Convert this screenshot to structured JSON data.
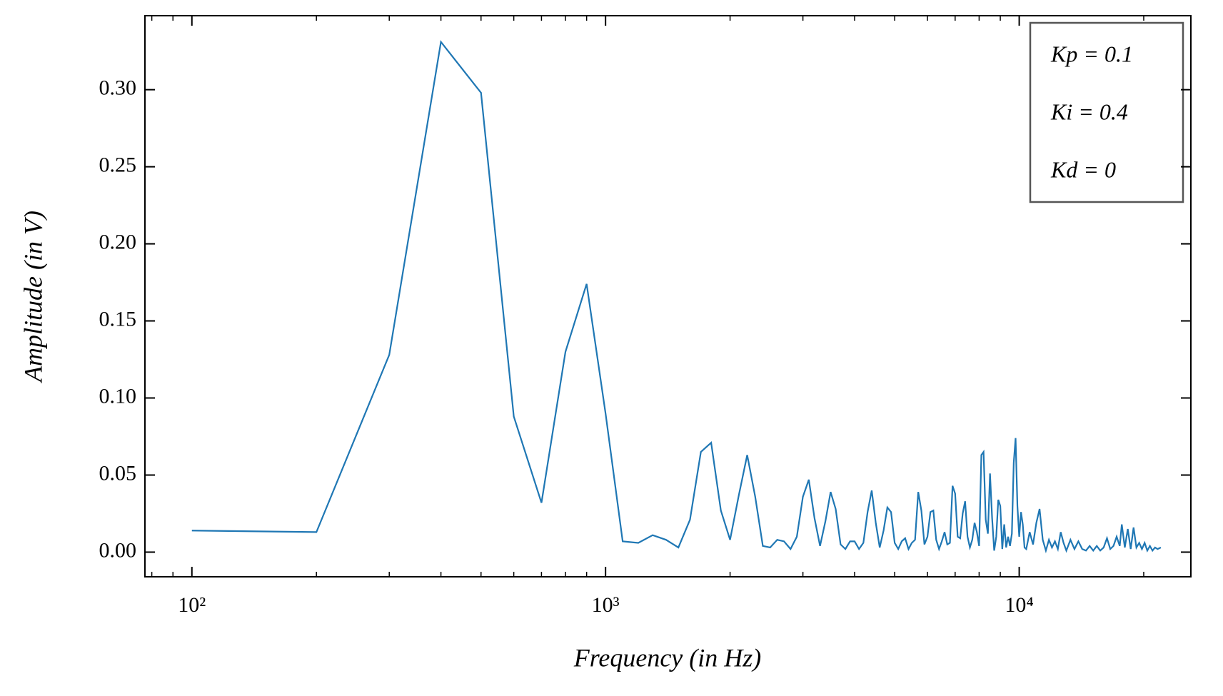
{
  "chart_data": {
    "type": "line",
    "xlabel": "Frequency (in Hz)",
    "ylabel": "Amplitude (in V)",
    "legend_lines": [
      "Kp = 0.1",
      "Ki = 0.4",
      "Kd = 0"
    ],
    "color": "#1f77b4",
    "xscale": "log",
    "xlim": [
      77,
      26000
    ],
    "ylim": [
      -0.016,
      0.348
    ],
    "xticks": [
      {
        "value": 100,
        "label": "10²"
      },
      {
        "value": 1000,
        "label": "10³"
      },
      {
        "value": 10000,
        "label": "10⁴"
      }
    ],
    "xminorticks": [
      80,
      90,
      200,
      300,
      400,
      500,
      600,
      700,
      800,
      900,
      2000,
      3000,
      4000,
      5000,
      6000,
      7000,
      8000,
      9000,
      20000
    ],
    "yticks": [
      {
        "value": 0,
        "label": "0.00"
      },
      {
        "value": 0.05,
        "label": "0.05"
      },
      {
        "value": 0.1,
        "label": "0.10"
      },
      {
        "value": 0.15,
        "label": "0.15"
      },
      {
        "value": 0.2,
        "label": "0.20"
      },
      {
        "value": 0.25,
        "label": "0.25"
      },
      {
        "value": 0.3,
        "label": "0.30"
      }
    ],
    "x": [
      100,
      200,
      300,
      400,
      500,
      600,
      700,
      800,
      900,
      1000,
      1100,
      1200,
      1300,
      1400,
      1500,
      1600,
      1700,
      1800,
      1900,
      2000,
      2100,
      2200,
      2300,
      2400,
      2500,
      2600,
      2700,
      2800,
      2900,
      3000,
      3100,
      3200,
      3300,
      3400,
      3500,
      3600,
      3700,
      3800,
      3900,
      4000,
      4100,
      4200,
      4300,
      4400,
      4500,
      4600,
      4700,
      4800,
      4900,
      5000,
      5100,
      5200,
      5300,
      5400,
      5500,
      5600,
      5700,
      5800,
      5900,
      6000,
      6100,
      6200,
      6300,
      6400,
      6500,
      6600,
      6700,
      6800,
      6900,
      7000,
      7100,
      7200,
      7300,
      7400,
      7500,
      7600,
      7700,
      7800,
      7900,
      8000,
      8100,
      8200,
      8300,
      8400,
      8500,
      8600,
      8700,
      8800,
      8900,
      9000,
      9100,
      9200,
      9300,
      9400,
      9500,
      9600,
      9700,
      9800,
      9900,
      10000,
      10100,
      10200,
      10300,
      10400,
      10600,
      10800,
      11000,
      11200,
      11400,
      11600,
      11800,
      12000,
      12200,
      12400,
      12600,
      12800,
      13000,
      13300,
      13600,
      13900,
      14200,
      14500,
      14800,
      15100,
      15400,
      15700,
      16000,
      16300,
      16600,
      16900,
      17200,
      17500,
      17700,
      18000,
      18300,
      18600,
      18900,
      19200,
      19500,
      19800,
      20100,
      20400,
      20700,
      21000,
      21300,
      21600,
      22000
    ],
    "values": [
      0.014,
      0.013,
      0.128,
      0.331,
      0.298,
      0.088,
      0.032,
      0.13,
      0.174,
      0.09,
      0.007,
      0.006,
      0.011,
      0.008,
      0.003,
      0.021,
      0.065,
      0.071,
      0.027,
      0.008,
      0.037,
      0.063,
      0.036,
      0.004,
      0.003,
      0.008,
      0.007,
      0.002,
      0.01,
      0.036,
      0.047,
      0.022,
      0.004,
      0.02,
      0.039,
      0.028,
      0.005,
      0.002,
      0.007,
      0.007,
      0.002,
      0.006,
      0.026,
      0.04,
      0.019,
      0.003,
      0.014,
      0.029,
      0.026,
      0.006,
      0.002,
      0.007,
      0.009,
      0.002,
      0.006,
      0.008,
      0.039,
      0.027,
      0.005,
      0.01,
      0.026,
      0.027,
      0.008,
      0.002,
      0.007,
      0.013,
      0.005,
      0.006,
      0.043,
      0.038,
      0.01,
      0.009,
      0.025,
      0.033,
      0.01,
      0.003,
      0.008,
      0.019,
      0.013,
      0.004,
      0.063,
      0.065,
      0.021,
      0.012,
      0.051,
      0.022,
      0.001,
      0.01,
      0.034,
      0.03,
      0.002,
      0.018,
      0.003,
      0.01,
      0.004,
      0.012,
      0.058,
      0.074,
      0.03,
      0.01,
      0.026,
      0.018,
      0.003,
      0.002,
      0.013,
      0.005,
      0.019,
      0.028,
      0.008,
      0.001,
      0.008,
      0.003,
      0.007,
      0.002,
      0.013,
      0.006,
      0.001,
      0.008,
      0.002,
      0.007,
      0.002,
      0.001,
      0.004,
      0.001,
      0.004,
      0.001,
      0.003,
      0.009,
      0.002,
      0.004,
      0.01,
      0.004,
      0.018,
      0.003,
      0.015,
      0.002,
      0.016,
      0.003,
      0.006,
      0.002,
      0.006,
      0.001,
      0.004,
      0.001,
      0.003,
      0.002,
      0.003
    ]
  }
}
